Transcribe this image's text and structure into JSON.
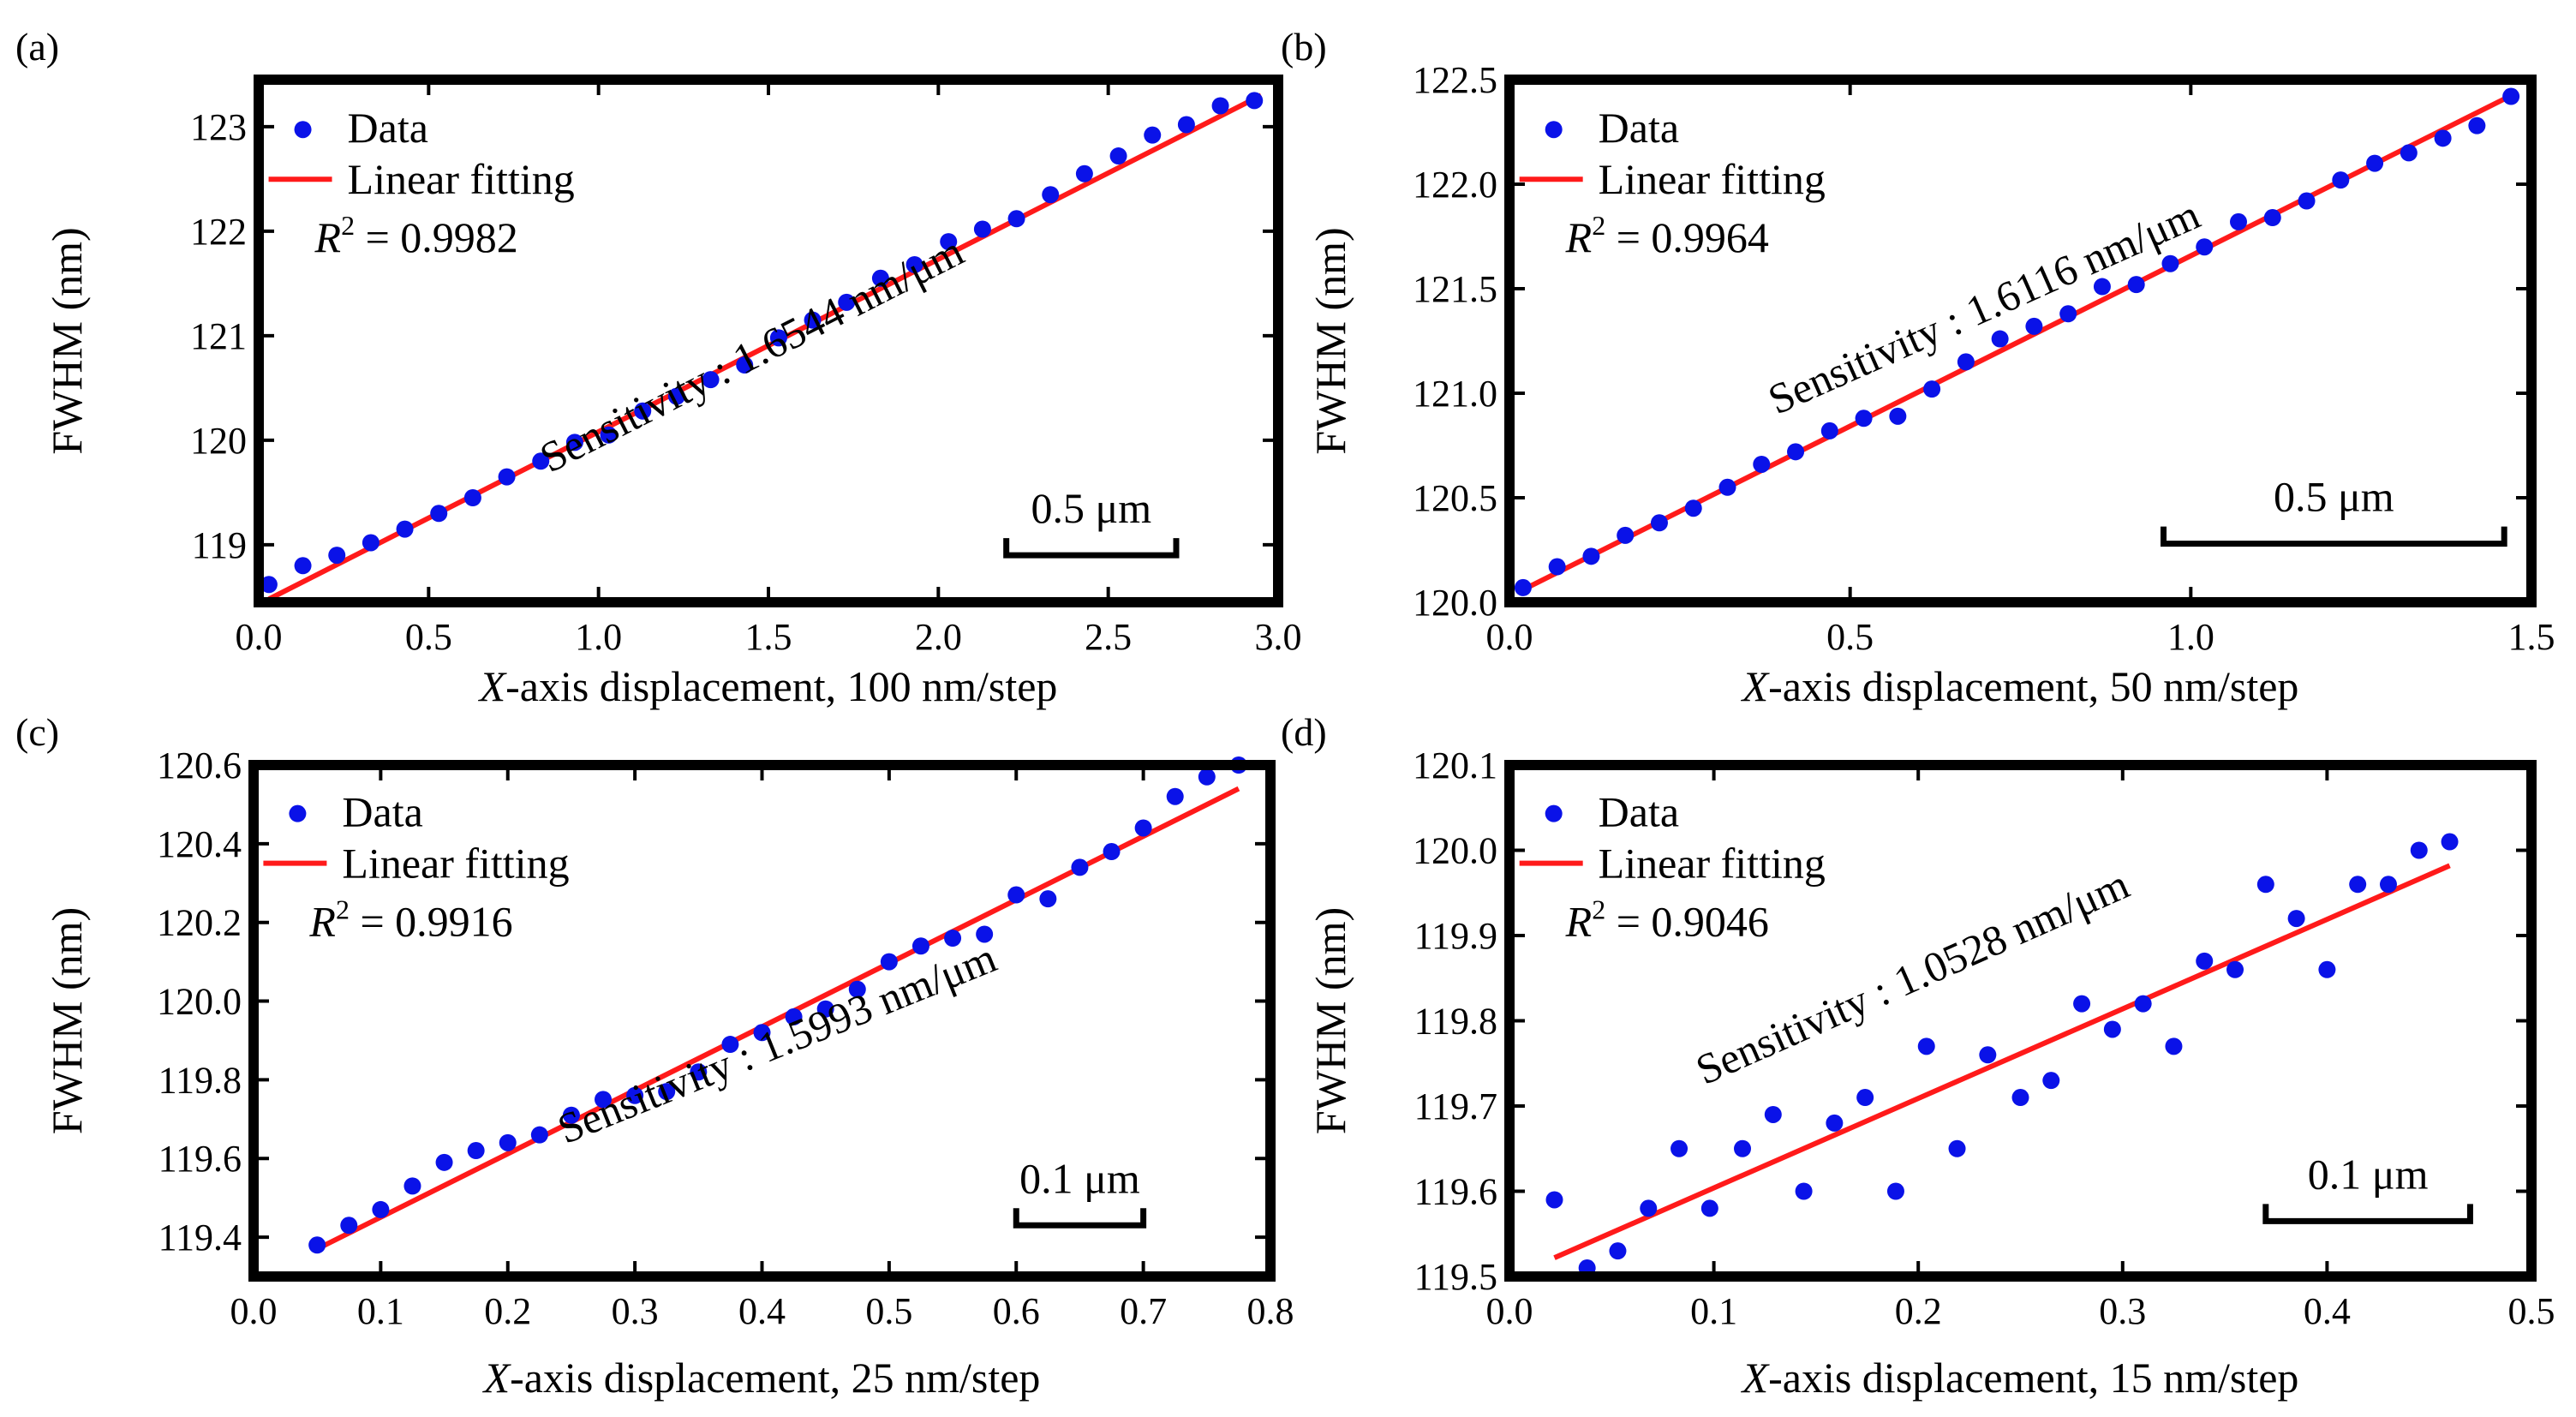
{
  "chart_data": [
    {
      "type": "scatter",
      "panel_label": "(a)",
      "xlabel_italic": "X",
      "xlabel_rest": "-axis displacement, 100 nm/step",
      "ylabel": "FWHM (nm)",
      "xlim": [
        0.0,
        3.0
      ],
      "ylim": [
        118.45,
        123.45
      ],
      "xticks": [
        0.0,
        0.5,
        1.0,
        1.5,
        2.0,
        2.5,
        3.0
      ],
      "xtick_labels": [
        "0.0",
        "0.5",
        "1.0",
        "1.5",
        "2.0",
        "2.5",
        "3.0"
      ],
      "yticks": [
        119,
        120,
        121,
        122,
        123
      ],
      "ytick_labels": [
        "119",
        "120",
        "121",
        "122",
        "123"
      ],
      "legend": {
        "data_label": "Data",
        "fit_label": "Linear fitting",
        "placement": "top-left"
      },
      "r2": {
        "label_italic": "R",
        "label_sup": "2",
        "label_rest": " = 0.9982"
      },
      "sensitivity_label": "Sensitivity : 1.6544 nm/μm",
      "scalebar": {
        "label": "0.5 μm",
        "x_start": 2.2,
        "x_end": 2.7,
        "y": 118.9
      },
      "series": [
        {
          "name": "Data",
          "x": [
            0.03,
            0.13,
            0.23,
            0.33,
            0.43,
            0.53,
            0.63,
            0.73,
            0.83,
            0.93,
            1.03,
            1.13,
            1.23,
            1.33,
            1.43,
            1.53,
            1.63,
            1.73,
            1.83,
            1.93,
            2.03,
            2.13,
            2.23,
            2.33,
            2.43,
            2.53,
            2.63,
            2.73,
            2.83,
            2.93
          ],
          "y": [
            118.62,
            118.8,
            118.9,
            119.02,
            119.15,
            119.3,
            119.45,
            119.65,
            119.8,
            119.98,
            120.05,
            120.28,
            120.42,
            120.58,
            120.72,
            120.98,
            121.15,
            121.32,
            121.55,
            121.68,
            121.9,
            122.02,
            122.12,
            122.35,
            122.55,
            122.72,
            122.92,
            123.02,
            123.2,
            123.25
          ]
        },
        {
          "name": "Linear fitting",
          "x": [
            0.03,
            2.95
          ],
          "y": [
            118.48,
            123.3
          ]
        }
      ]
    },
    {
      "type": "scatter",
      "panel_label": "(b)",
      "xlabel_italic": "X",
      "xlabel_rest": "-axis displacement, 50 nm/step",
      "ylabel": "FWHM (nm)",
      "xlim": [
        0.0,
        1.5
      ],
      "ylim": [
        120.0,
        122.5
      ],
      "xticks": [
        0.0,
        0.5,
        1.0,
        1.5
      ],
      "xtick_labels": [
        "0.0",
        "0.5",
        "1.0",
        "1.5"
      ],
      "yticks": [
        120.0,
        120.5,
        121.0,
        121.5,
        122.0,
        122.5
      ],
      "ytick_labels": [
        "120.0",
        "120.5",
        "121.0",
        "121.5",
        "122.0",
        "122.5"
      ],
      "legend": {
        "data_label": "Data",
        "fit_label": "Linear fitting",
        "placement": "top-left"
      },
      "r2": {
        "label_italic": "R",
        "label_sup": "2",
        "label_rest": " = 0.9964"
      },
      "sensitivity_label": "Sensitivity : 1.6116 nm/μm",
      "scalebar": {
        "label": "0.5 μm",
        "x_start": 0.96,
        "x_end": 1.46,
        "y": 120.28
      },
      "series": [
        {
          "name": "Data",
          "x": [
            0.02,
            0.07,
            0.12,
            0.17,
            0.22,
            0.27,
            0.32,
            0.37,
            0.42,
            0.47,
            0.52,
            0.57,
            0.62,
            0.67,
            0.72,
            0.77,
            0.82,
            0.87,
            0.92,
            0.97,
            1.02,
            1.07,
            1.12,
            1.17,
            1.22,
            1.27,
            1.32,
            1.37,
            1.42,
            1.47
          ],
          "y": [
            120.07,
            120.17,
            120.22,
            120.32,
            120.38,
            120.45,
            120.55,
            120.66,
            120.72,
            120.82,
            120.88,
            120.89,
            121.02,
            121.15,
            121.26,
            121.32,
            121.38,
            121.51,
            121.52,
            121.62,
            121.7,
            121.82,
            121.84,
            121.92,
            122.02,
            122.1,
            122.15,
            122.22,
            122.28,
            122.42
          ]
        },
        {
          "name": "Linear fitting",
          "x": [
            0.02,
            1.48
          ],
          "y": [
            120.06,
            122.44
          ]
        }
      ]
    },
    {
      "type": "scatter",
      "panel_label": "(c)",
      "xlabel_italic": "X",
      "xlabel_rest": "-axis displacement, 25 nm/step",
      "ylabel": "FWHM (nm)",
      "xlim": [
        0.0,
        0.8
      ],
      "ylim": [
        119.3,
        120.6
      ],
      "xticks": [
        0.0,
        0.1,
        0.2,
        0.3,
        0.4,
        0.5,
        0.6,
        0.7,
        0.8
      ],
      "xtick_labels": [
        "0.0",
        "0.1",
        "0.2",
        "0.3",
        "0.4",
        "0.5",
        "0.6",
        "0.7",
        "0.8"
      ],
      "yticks": [
        119.4,
        119.6,
        119.8,
        120.0,
        120.2,
        120.4,
        120.6
      ],
      "ytick_labels": [
        "119.4",
        "119.6",
        "119.8",
        "120.0",
        "120.2",
        "120.4",
        "120.6"
      ],
      "legend": {
        "data_label": "Data",
        "fit_label": "Linear fitting",
        "placement": "top-left"
      },
      "r2": {
        "label_italic": "R",
        "label_sup": "2",
        "label_rest": " = 0.9916"
      },
      "sensitivity_label": "Sensitivity : 1.5993 nm/μm",
      "scalebar": {
        "label": "0.1 μm",
        "x_start": 0.6,
        "x_end": 0.7,
        "y": 119.43
      },
      "series": [
        {
          "name": "Data",
          "x": [
            0.05,
            0.075,
            0.1,
            0.125,
            0.15,
            0.175,
            0.2,
            0.225,
            0.25,
            0.275,
            0.3,
            0.325,
            0.35,
            0.375,
            0.4,
            0.425,
            0.45,
            0.475,
            0.5,
            0.525,
            0.55,
            0.575,
            0.6,
            0.625,
            0.65,
            0.675,
            0.7,
            0.725,
            0.75,
            0.775
          ],
          "y": [
            119.38,
            119.43,
            119.47,
            119.53,
            119.59,
            119.62,
            119.64,
            119.66,
            119.71,
            119.75,
            119.76,
            119.77,
            119.82,
            119.89,
            119.92,
            119.96,
            119.98,
            120.03,
            120.1,
            120.14,
            120.16,
            120.17,
            120.27,
            120.26,
            120.34,
            120.38,
            120.44,
            120.52,
            120.57,
            120.6
          ]
        },
        {
          "name": "Linear fitting",
          "x": [
            0.05,
            0.775
          ],
          "y": [
            119.37,
            120.54
          ]
        }
      ]
    },
    {
      "type": "scatter",
      "panel_label": "(d)",
      "xlabel_italic": "X",
      "xlabel_rest": "-axis displacement, 15 nm/step",
      "ylabel": "FWHM (nm)",
      "xlim": [
        0.0,
        0.5
      ],
      "ylim": [
        119.5,
        120.1
      ],
      "xticks": [
        0.0,
        0.1,
        0.2,
        0.3,
        0.4,
        0.5
      ],
      "xtick_labels": [
        "0.0",
        "0.1",
        "0.2",
        "0.3",
        "0.4",
        "0.5"
      ],
      "yticks": [
        119.5,
        119.6,
        119.7,
        119.8,
        119.9,
        120.0,
        120.1
      ],
      "ytick_labels": [
        "119.5",
        "119.6",
        "119.7",
        "119.8",
        "119.9",
        "120.0",
        "120.1"
      ],
      "legend": {
        "data_label": "Data",
        "fit_label": "Linear fitting",
        "placement": "top-left"
      },
      "r2": {
        "label_italic": "R",
        "label_sup": "2",
        "label_rest": " = 0.9046"
      },
      "sensitivity_label": "Sensitivity : 1.0528 nm/μm",
      "scalebar": {
        "label": "0.1 μm",
        "x_start": 0.37,
        "x_end": 0.47,
        "y": 119.565
      },
      "series": [
        {
          "name": "Data",
          "x": [
            0.022,
            0.038,
            0.053,
            0.068,
            0.083,
            0.098,
            0.114,
            0.129,
            0.144,
            0.159,
            0.174,
            0.189,
            0.204,
            0.219,
            0.234,
            0.25,
            0.265,
            0.28,
            0.295,
            0.31,
            0.325,
            0.34,
            0.355,
            0.37,
            0.385,
            0.4,
            0.415,
            0.43,
            0.445,
            0.46
          ],
          "y": [
            119.59,
            119.51,
            119.53,
            119.58,
            119.65,
            119.58,
            119.65,
            119.69,
            119.6,
            119.68,
            119.71,
            119.6,
            119.77,
            119.65,
            119.76,
            119.71,
            119.73,
            119.82,
            119.79,
            119.82,
            119.77,
            119.87,
            119.86,
            119.96,
            119.92,
            119.86,
            119.96,
            119.96,
            120.0,
            120.01
          ]
        },
        {
          "name": "Linear fitting",
          "x": [
            0.022,
            0.46
          ],
          "y": [
            119.522,
            119.982
          ]
        }
      ]
    }
  ],
  "colors": {
    "data": "#0a12e8",
    "fit": "#ff1a1a",
    "frame": "#000000"
  }
}
